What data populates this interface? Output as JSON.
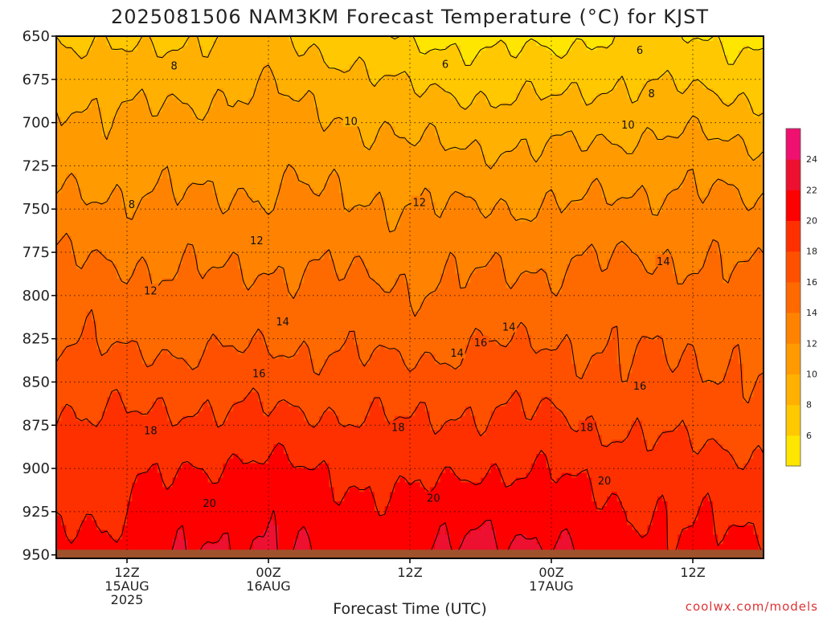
{
  "chart_data": {
    "type": "heatmap",
    "title": "2025081506 NAM3KM Forecast Temperature (°C) for KJST",
    "xlabel": "Forecast Time (UTC)",
    "ylabel": "",
    "y_ticks": [
      650,
      675,
      700,
      725,
      750,
      775,
      800,
      825,
      850,
      875,
      900,
      925,
      950
    ],
    "ylim": [
      650,
      952
    ],
    "x_ticks": [
      {
        "t": 6,
        "lines": [
          "12Z",
          "15AUG",
          "2025"
        ]
      },
      {
        "t": 18,
        "lines": [
          "00Z",
          "16AUG"
        ]
      },
      {
        "t": 30,
        "lines": [
          "12Z"
        ]
      },
      {
        "t": 42,
        "lines": [
          "00Z",
          "17AUG"
        ]
      },
      {
        "t": 54,
        "lines": [
          "12Z"
        ]
      }
    ],
    "xlim_hours": [
      0,
      60
    ],
    "grid": true,
    "colorbar": {
      "ticks": [
        6,
        8,
        10,
        12,
        14,
        16,
        18,
        20,
        22,
        24
      ],
      "range": [
        4,
        26
      ],
      "colors": [
        "#FFE600",
        "#FFC800",
        "#FFB000",
        "#FF9A00",
        "#FF8300",
        "#FF6A00",
        "#FF5000",
        "#FF3000",
        "#FF0000",
        "#EE1030",
        "#F01070"
      ]
    },
    "temperature_profiles": {
      "levels_hpa": [
        650,
        675,
        700,
        725,
        750,
        775,
        800,
        825,
        850,
        875,
        900,
        925,
        950
      ],
      "times_hours": [
        0,
        6,
        12,
        18,
        24,
        30,
        36,
        42,
        48,
        54,
        60
      ],
      "values": [
        [
          7.9,
          9.3,
          10.6,
          11.4,
          12.6,
          13.9,
          15.1,
          15.9,
          17.3,
          18.4,
          19.1,
          19.6,
          20.6
        ],
        [
          7.4,
          9.0,
          10.3,
          11.1,
          12.4,
          13.7,
          14.8,
          15.6,
          17.1,
          18.3,
          19.3,
          20.1,
          20.8
        ],
        [
          7.9,
          9.4,
          10.6,
          11.3,
          12.4,
          13.5,
          14.6,
          15.5,
          17.0,
          18.6,
          20.1,
          21.3,
          22.1
        ],
        [
          8.4,
          9.8,
          10.8,
          11.5,
          12.4,
          13.5,
          14.7,
          15.7,
          17.1,
          18.6,
          20.4,
          21.6,
          22.3
        ],
        [
          7.0,
          8.8,
          10.2,
          11.4,
          12.3,
          13.5,
          14.6,
          15.6,
          16.9,
          18.4,
          19.7,
          20.7,
          21.5
        ],
        [
          5.6,
          7.6,
          9.4,
          10.8,
          12.1,
          13.2,
          14.2,
          15.2,
          16.8,
          18.1,
          19.3,
          20.4,
          21.5
        ],
        [
          5.4,
          7.3,
          9.0,
          10.6,
          12.1,
          13.4,
          14.6,
          15.8,
          17.1,
          18.4,
          19.9,
          21.6,
          22.7
        ],
        [
          5.3,
          7.2,
          9.1,
          10.7,
          12.1,
          13.5,
          14.7,
          15.9,
          17.1,
          18.4,
          19.8,
          21.1,
          22.4
        ],
        [
          6.3,
          7.8,
          9.4,
          11.0,
          12.5,
          13.9,
          14.8,
          15.6,
          16.4,
          17.7,
          19.2,
          20.2,
          20.9
        ],
        [
          6.1,
          7.6,
          9.6,
          11.3,
          12.6,
          13.8,
          14.9,
          15.7,
          16.5,
          17.4,
          18.8,
          19.7,
          20.4
        ],
        [
          5.3,
          7.0,
          8.8,
          10.9,
          12.2,
          13.5,
          14.4,
          15.3,
          16.1,
          17.1,
          18.4,
          19.4,
          20.6
        ]
      ]
    },
    "contour_labels": [
      {
        "t": 6.4,
        "p": 747,
        "text": "8"
      },
      {
        "t": 10.0,
        "p": 667,
        "text": "8"
      },
      {
        "t": 33.0,
        "p": 666,
        "text": "6"
      },
      {
        "t": 49.5,
        "p": 658,
        "text": "6"
      },
      {
        "t": 50.5,
        "p": 683,
        "text": "8"
      },
      {
        "t": 25.0,
        "p": 699,
        "text": "10"
      },
      {
        "t": 48.5,
        "p": 701,
        "text": "10"
      },
      {
        "t": 17.0,
        "p": 768,
        "text": "12"
      },
      {
        "t": 8.0,
        "p": 797,
        "text": "12"
      },
      {
        "t": 30.8,
        "p": 746,
        "text": "12"
      },
      {
        "t": 19.2,
        "p": 815,
        "text": "14"
      },
      {
        "t": 38.4,
        "p": 818,
        "text": "14"
      },
      {
        "t": 34.0,
        "p": 833,
        "text": "14"
      },
      {
        "t": 51.5,
        "p": 780,
        "text": "14"
      },
      {
        "t": 17.2,
        "p": 845,
        "text": "16"
      },
      {
        "t": 36.0,
        "p": 827,
        "text": "16"
      },
      {
        "t": 49.5,
        "p": 852,
        "text": "16"
      },
      {
        "t": 8.0,
        "p": 878,
        "text": "18"
      },
      {
        "t": 29.0,
        "p": 876,
        "text": "18"
      },
      {
        "t": 45.0,
        "p": 876,
        "text": "18"
      },
      {
        "t": 13.0,
        "p": 920,
        "text": "20"
      },
      {
        "t": 32.0,
        "p": 917,
        "text": "20"
      },
      {
        "t": 46.5,
        "p": 907,
        "text": "20"
      }
    ]
  },
  "credit": "coolwx.com/models",
  "credit_color": "#dd3333",
  "ground_color": "#a0522d"
}
